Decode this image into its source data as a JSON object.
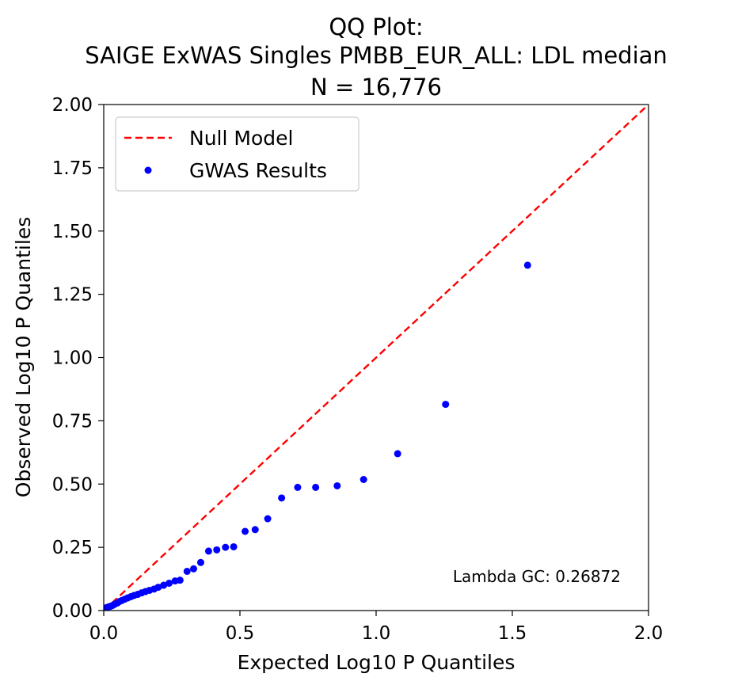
{
  "chart_data": {
    "type": "scatter",
    "title_lines": [
      "QQ Plot:",
      "SAIGE ExWAS Singles PMBB_EUR_ALL: LDL median",
      "N = 16,776"
    ],
    "xlabel": "Expected Log10 P Quantiles",
    "ylabel": "Observed Log10 P Quantiles",
    "xlim": [
      0,
      2
    ],
    "ylim": [
      0,
      2
    ],
    "x_ticks": [
      "0.0",
      "0.5",
      "1.0",
      "1.5",
      "2.0"
    ],
    "y_ticks": [
      "0.00",
      "0.25",
      "0.50",
      "0.75",
      "1.00",
      "1.25",
      "1.50",
      "1.75",
      "2.00"
    ],
    "grid": false,
    "legend": {
      "placement": "top-left",
      "entries": [
        {
          "label": "Null Model",
          "marker": "dashed-line",
          "color": "#ff0000"
        },
        {
          "label": "GWAS Results",
          "marker": "dot",
          "color": "#0000ff"
        }
      ]
    },
    "annotation": "Lambda GC: 0.26872",
    "series": [
      {
        "name": "Null Model",
        "kind": "line",
        "color": "#ff0000",
        "x": [
          0,
          2
        ],
        "y": [
          0,
          2
        ]
      },
      {
        "name": "GWAS Results",
        "kind": "scatter",
        "color": "#0000ff",
        "x": [
          1.556,
          1.255,
          1.079,
          0.954,
          0.857,
          0.778,
          0.712,
          0.653,
          0.602,
          0.556,
          0.519,
          0.477,
          0.447,
          0.415,
          0.385,
          0.356,
          0.33,
          0.306,
          0.28,
          0.262,
          0.24,
          0.22,
          0.2,
          0.185,
          0.168,
          0.153,
          0.139,
          0.125,
          0.112,
          0.1,
          0.088,
          0.077,
          0.067,
          0.058,
          0.05,
          0.04,
          0.032,
          0.025,
          0.018,
          0.012,
          0.007,
          0.003
        ],
        "y": [
          1.365,
          0.815,
          0.62,
          0.518,
          0.493,
          0.487,
          0.487,
          0.445,
          0.363,
          0.32,
          0.313,
          0.252,
          0.25,
          0.24,
          0.235,
          0.19,
          0.165,
          0.155,
          0.12,
          0.117,
          0.108,
          0.1,
          0.092,
          0.085,
          0.08,
          0.075,
          0.07,
          0.064,
          0.06,
          0.055,
          0.05,
          0.045,
          0.04,
          0.036,
          0.03,
          0.025,
          0.02,
          0.017,
          0.015,
          0.012,
          0.01,
          0.006
        ]
      }
    ]
  }
}
